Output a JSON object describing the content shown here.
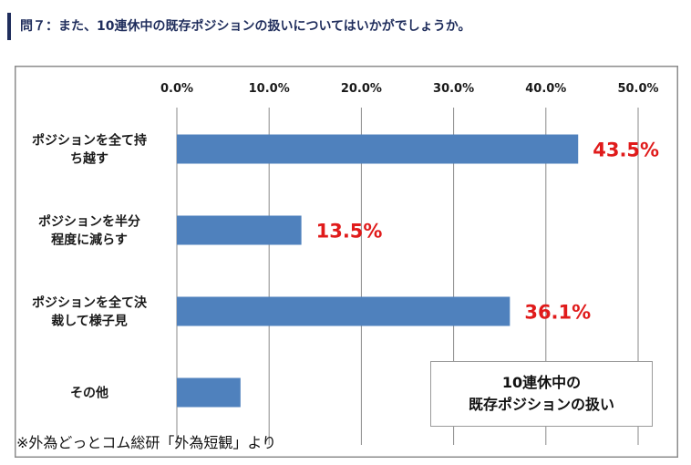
{
  "header": {
    "question": "問７：また、10連休中の既存ポジションの扱いについてはいかがでしょうか。"
  },
  "chart_data": {
    "type": "bar",
    "orientation": "horizontal",
    "categories": [
      [
        "ポジションを全て持",
        "ち越す"
      ],
      [
        "ポジションを半分",
        "程度に減らす"
      ],
      [
        "ポジションを全て決",
        "裁して様子見"
      ],
      [
        "その他"
      ]
    ],
    "values": [
      43.5,
      13.5,
      36.1,
      6.9
    ],
    "data_labels": [
      "43.5%",
      "13.5%",
      "36.1%",
      ""
    ],
    "xlim": [
      0,
      50
    ],
    "x_ticks": [
      "0.0%",
      "10.0%",
      "20.0%",
      "30.0%",
      "40.0%",
      "50.0%"
    ],
    "x_axis_position": "top",
    "grid": true,
    "bar_color": "#4f81bd",
    "label_color": "#e01b1b",
    "legend_box": [
      "10連休中の",
      "既存ポジションの扱い"
    ]
  },
  "source_note": "※外為どっとコム総研「外為短観」より"
}
